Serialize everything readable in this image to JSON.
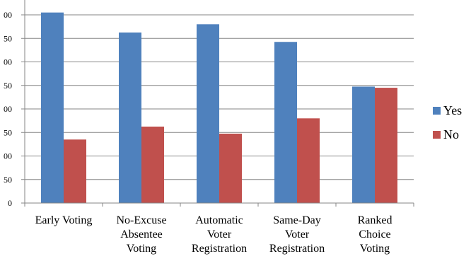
{
  "chart_data": {
    "type": "bar",
    "title": "",
    "xlabel": "",
    "ylabel": "",
    "ylim": [
      0,
      9
    ],
    "ytick_labels": [
      "0",
      "50",
      "00",
      "50",
      "00",
      "50",
      "00",
      "50",
      "00"
    ],
    "categories": [
      [
        "Early Voting"
      ],
      [
        "No-Excuse",
        "Absentee",
        "Voting"
      ],
      [
        "Automatic",
        "Voter",
        "Registration"
      ],
      [
        "Same-Day",
        "Voter",
        "Registration"
      ],
      [
        "Ranked",
        "Choice",
        "Voting"
      ]
    ],
    "series": [
      {
        "name": "Yes",
        "color": "#4f81bd",
        "values": [
          8.1,
          7.25,
          7.6,
          6.85,
          4.95
        ]
      },
      {
        "name": "No",
        "color": "#c0504d",
        "values": [
          2.7,
          3.25,
          2.95,
          3.6,
          4.9
        ]
      }
    ],
    "grid": true,
    "legend": "right"
  }
}
